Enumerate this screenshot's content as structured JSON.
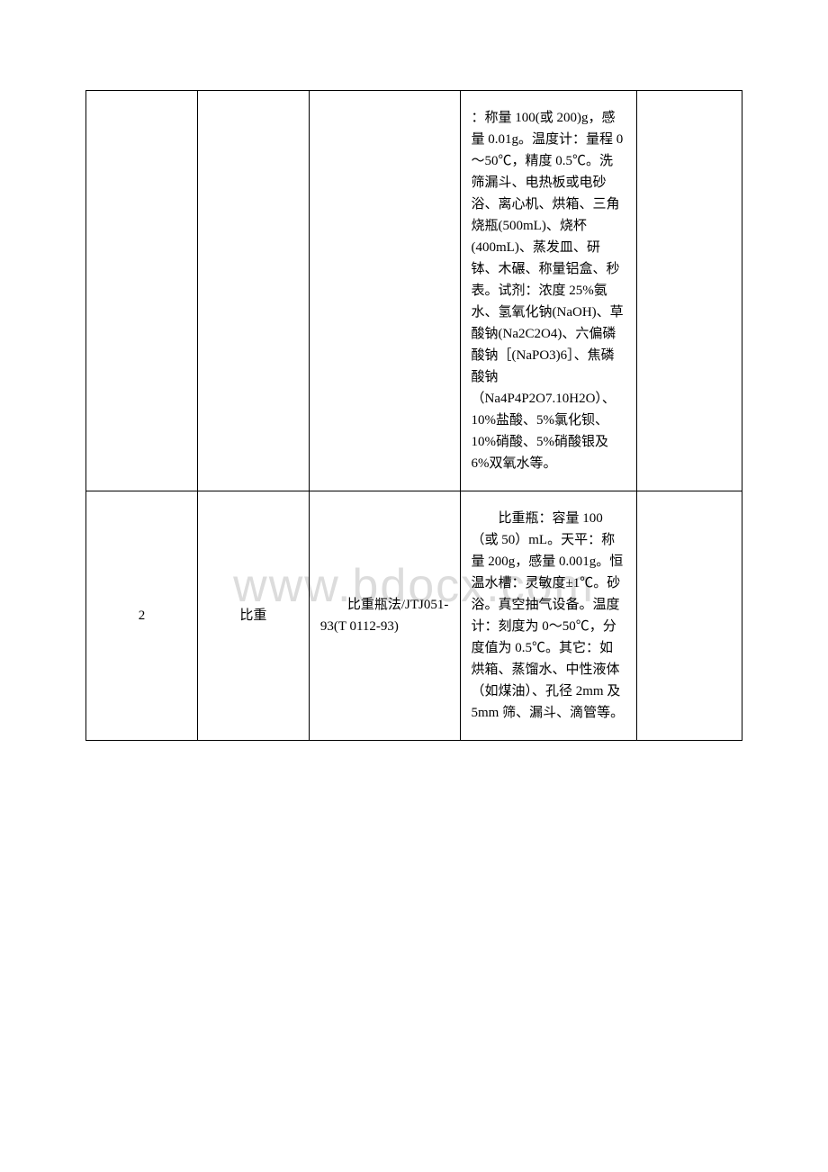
{
  "watermark": "www.bdocx.com",
  "table": {
    "rows": [
      {
        "col1": "",
        "col2": "",
        "col3": "",
        "col4": "：称量 100(或 200)g，感量 0.01g。温度计：量程 0～50℃，精度 0.5℃。洗筛漏斗、电热板或电砂浴、离心机、烘箱、三角烧瓶(500mL)、烧杯(400mL)、蒸发皿、研钵、木碾、称量铝盒、秒表。试剂：浓度 25%氨水、氢氧化钠(NaOH)、草酸钠(Na2C2O4)、六偏磷酸钠［(NaPO3)6］、焦磷酸钠（Na4P4P2O7.10H2O）、10%盐酸、5%氯化钡、10%硝酸、5%硝酸银及 6%双氧水等。",
        "col5": ""
      },
      {
        "col1": "2",
        "col2": "比重",
        "col3": "比重瓶法/JTJ051-93(T 0112-93)",
        "col4": "比重瓶：容量 100（或 50）mL。天平：称量 200g，感量 0.001g。恒温水槽：灵敏度±1℃。砂浴。真空抽气设备。温度计：刻度为 0～50℃，分度值为 0.5℃。其它：如烘箱、蒸馏水、中性液体（如煤油）、孔径 2mm 及 5mm 筛、漏斗、滴管等。",
        "col5": ""
      }
    ]
  }
}
